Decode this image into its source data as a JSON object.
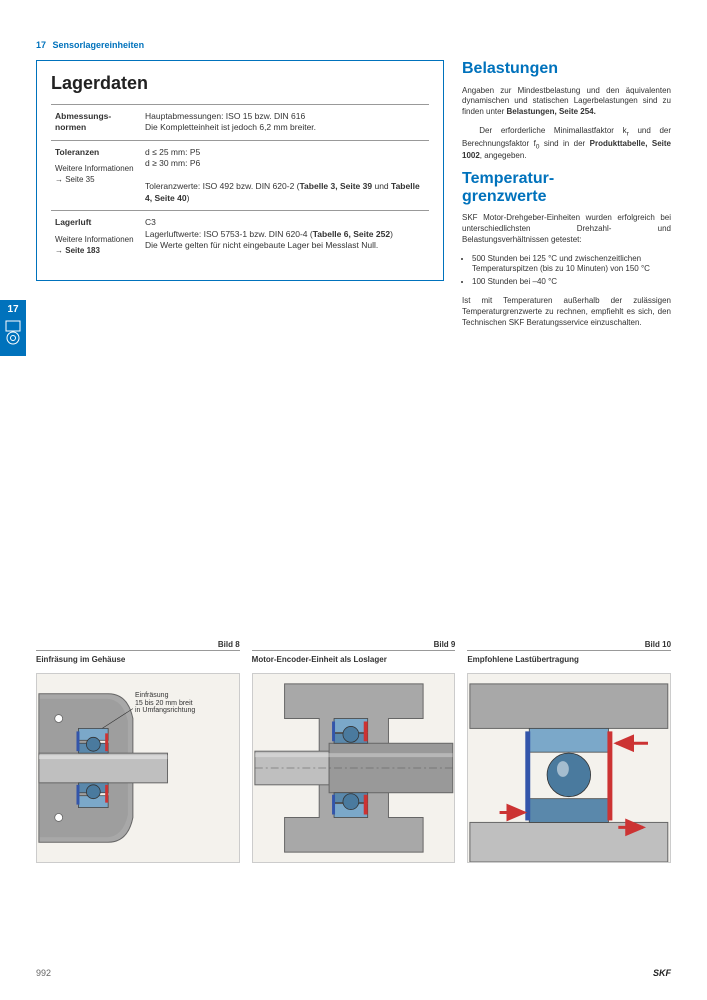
{
  "header": {
    "num": "17",
    "title": "Sensorlagereinheiten"
  },
  "tab": {
    "num": "17"
  },
  "box": {
    "title": "Lagerdaten",
    "rows": [
      {
        "label": "Abmessungs-\nnormen",
        "sub": null,
        "content": "Hauptabmessungen: ISO 15 bzw. DIN 616\nDie Kompletteinheit ist jedoch 6,2 mm breiter."
      },
      {
        "label": "Toleranzen",
        "sub": "Weitere Informationen\n→ Seite 35",
        "content": "d ≤ 25 mm: P5\nd ≥ 30 mm: P6\n\nToleranzwerte: ISO 492 bzw. DIN 620-2 (<b>Tabelle 3, Seite 39</b> und <b>Tabelle 4, Seite 40</b>)"
      },
      {
        "label": "Lagerluft",
        "sub": "Weitere Informationen\n→ <b>Seite 183</b>",
        "content": "C3\nLagerluftwerte: ISO 5753-1 bzw. DIN 620-4 (<b>Tabelle 6, Seite 252</b>)\nDie Werte gelten für nicht eingebaute Lager bei Messlast Null."
      }
    ]
  },
  "right": {
    "sections": [
      {
        "title": "Belastungen",
        "paras": [
          "Angaben zur Mindestbelastung und den äquivalenten dynamischen und statischen Lagerbelastungen sind zu finden unter <b>Belastungen, Seite 254.</b>",
          "&nbsp;&nbsp;Der erforderliche Minimallastfaktor k<sub>r</sub> und der Berechnungsfaktor f<sub>0</sub> sind in der <b>Produkttabelle, Seite 1002</b>, angegeben."
        ],
        "list": null
      },
      {
        "title": "Temperatur-\ngrenzwerte",
        "paras": [
          "SKF Motor-Drehgeber-Einheiten wurden erfolgreich bei unterschiedlichsten Drehzahl- und Belastungsverhältnissen getestet:"
        ],
        "list": [
          "500 Stunden bei 125 °C und zwischenzeitlichen Temperaturspitzen (bis zu 10 Minuten) von 150 °C",
          "100 Stunden bei –40 °C"
        ],
        "paras2": [
          "Ist mit Temperaturen außerhalb der zulässigen Temperaturgrenzwerte zu rechnen, empfiehlt es sich, den Technischen SKF Beratungsservice einzuschalten."
        ]
      }
    ]
  },
  "figs": [
    {
      "label": "Bild 8",
      "caption": "Einfräsung im Gehäuse",
      "note": "Einfräsung\n15 bis 20 mm breit\nin Umfangsrichtung"
    },
    {
      "label": "Bild 9",
      "caption": "Motor-Encoder-Einheit als Loslager",
      "note": null
    },
    {
      "label": "Bild 10",
      "caption": "Empfohlene Lastübertragung",
      "note": null
    }
  ],
  "footer": {
    "page": "992",
    "brand": "SKF"
  },
  "colors": {
    "accent": "#0072bc",
    "housing": "#a8a8a8",
    "housing_dark": "#888",
    "bearing_outer": "#7ba8c9",
    "bearing_inner": "#5a88ab",
    "ball": "#4a7a9e",
    "seal": "#cc3333",
    "sensor": "#3355aa",
    "shaft": "#bfbfbf",
    "shaft_dark": "#999",
    "bg": "#f4f2ed"
  }
}
